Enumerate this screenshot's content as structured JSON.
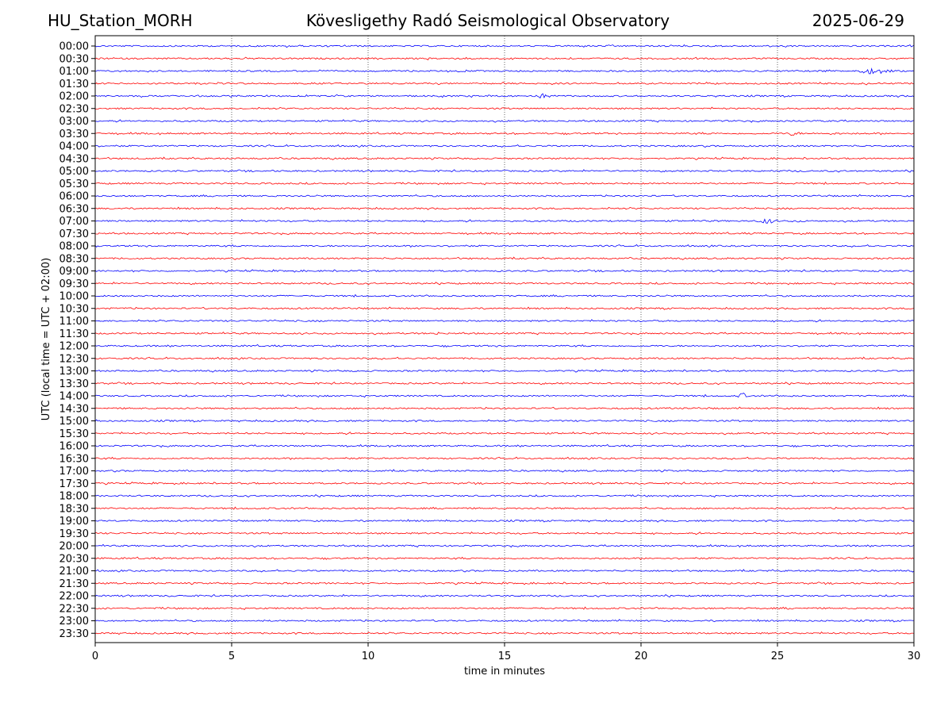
{
  "header": {
    "station": "HU_Station_MORH",
    "title": "Kövesligethy Radó Seismological Observatory",
    "date": "2025-06-29"
  },
  "chart_data": {
    "type": "line",
    "title": "Kövesligethy Radó Seismological Observatory",
    "xlabel": "time in minutes",
    "ylabel": "UTC (local time = UTC + 02:00)",
    "xlim": [
      0,
      30
    ],
    "x_ticks": [
      0,
      5,
      10,
      15,
      20,
      25,
      30
    ],
    "grid": "vertical dotted lines at 5-minute ticks",
    "row_labels": [
      "00:00",
      "00:30",
      "01:00",
      "01:30",
      "02:00",
      "02:30",
      "03:00",
      "03:30",
      "04:00",
      "04:30",
      "05:00",
      "05:30",
      "06:00",
      "06:30",
      "07:00",
      "07:30",
      "08:00",
      "08:30",
      "09:00",
      "09:30",
      "10:00",
      "10:30",
      "11:00",
      "11:30",
      "12:00",
      "12:30",
      "13:00",
      "13:30",
      "14:00",
      "14:30",
      "15:00",
      "15:30",
      "16:00",
      "16:30",
      "17:00",
      "17:30",
      "18:00",
      "18:30",
      "19:00",
      "19:30",
      "20:00",
      "20:30",
      "21:00",
      "21:30",
      "22:00",
      "22:30",
      "23:00",
      "23:30"
    ],
    "colors": {
      "full_hour": "#0000ff",
      "half_hour": "#ff0000"
    },
    "events": [
      {
        "row": "00:00",
        "x": [
          22.3,
          22.7
        ],
        "amp": 1.2
      },
      {
        "row": "00:00",
        "x": [
          26.5,
          27.2
        ],
        "amp": 1.2
      },
      {
        "row": "01:00",
        "x": [
          26.3,
          27.3
        ],
        "amp": 1.8
      },
      {
        "row": "01:00",
        "x": [
          27.8,
          29.3
        ],
        "amp": 4.5
      },
      {
        "row": "02:00",
        "x": [
          15.8,
          17.0
        ],
        "amp": 3.0
      },
      {
        "row": "03:00",
        "x": [
          19.4,
          20.0
        ],
        "amp": 1.4
      },
      {
        "row": "03:30",
        "x": [
          25.3,
          25.9
        ],
        "amp": 3.5
      },
      {
        "row": "03:30",
        "x": [
          25.9,
          28.0
        ],
        "amp": 1.5
      },
      {
        "row": "07:00",
        "x": [
          24.2,
          25.0
        ],
        "amp": 4.0
      },
      {
        "row": "07:00",
        "x": [
          25.0,
          26.5
        ],
        "amp": 1.6
      },
      {
        "row": "11:30",
        "x": [
          12.2,
          12.9
        ],
        "amp": 2.0
      },
      {
        "row": "14:00",
        "x": [
          23.55,
          23.9
        ],
        "amp": 5.0
      },
      {
        "row": "14:30",
        "x": [
          20.8,
          21.3
        ],
        "amp": 1.4
      },
      {
        "row": "22:30",
        "x": [
          25.0,
          25.9
        ],
        "amp": 1.5
      },
      {
        "row": "23:30",
        "x": [
          13.9,
          14.7
        ],
        "amp": 1.3
      }
    ]
  }
}
